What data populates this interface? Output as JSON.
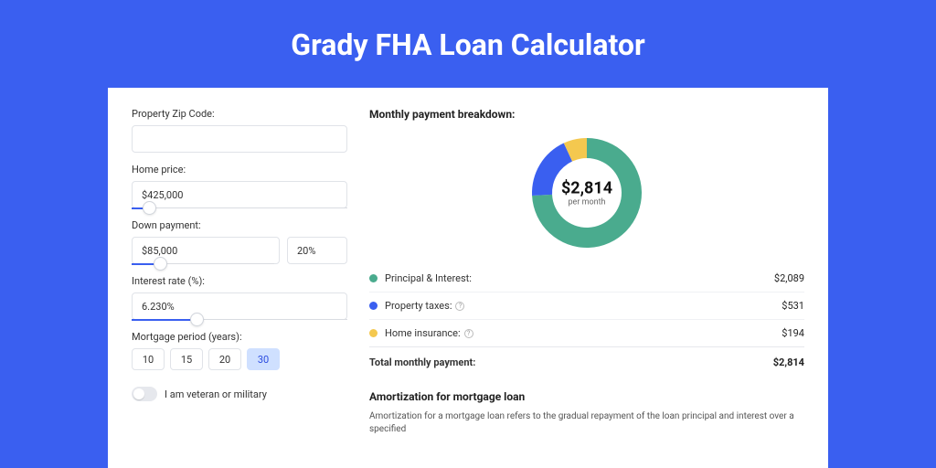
{
  "title": "Grady FHA Loan Calculator",
  "form": {
    "zip": {
      "label": "Property Zip Code:",
      "value": ""
    },
    "home_price": {
      "label": "Home price:",
      "value": "$425,000",
      "slider_pct": 8
    },
    "down_payment": {
      "label": "Down payment:",
      "value": "$85,000",
      "pct": "20%",
      "slider_pct": 20
    },
    "interest": {
      "label": "Interest rate (%):",
      "value": "6.230%",
      "slider_pct": 30
    },
    "period": {
      "label": "Mortgage period (years):",
      "options": [
        "10",
        "15",
        "20",
        "30"
      ],
      "active": 3
    },
    "veteran": {
      "label": "I am veteran or military",
      "checked": false
    }
  },
  "breakdown": {
    "title": "Monthly payment breakdown:",
    "donut": {
      "amount": "$2,814",
      "sub": "per month",
      "slices": [
        {
          "color": "#4aab8e",
          "pct": 74.2
        },
        {
          "color": "#3a5ff0",
          "pct": 18.9
        },
        {
          "color": "#f4c84f",
          "pct": 6.9
        }
      ],
      "inner_radius": 38,
      "outer_radius": 60,
      "size": 130
    },
    "items": [
      {
        "color": "#4aab8e",
        "label": "Principal & Interest:",
        "value": "$2,089",
        "info": false
      },
      {
        "color": "#3a5ff0",
        "label": "Property taxes:",
        "value": "$531",
        "info": true
      },
      {
        "color": "#f4c84f",
        "label": "Home insurance:",
        "value": "$194",
        "info": true
      }
    ],
    "total": {
      "label": "Total monthly payment:",
      "value": "$2,814"
    }
  },
  "amortization": {
    "title": "Amortization for mortgage loan",
    "text": "Amortization for a mortgage loan refers to the gradual repayment of the loan principal and interest over a specified"
  }
}
